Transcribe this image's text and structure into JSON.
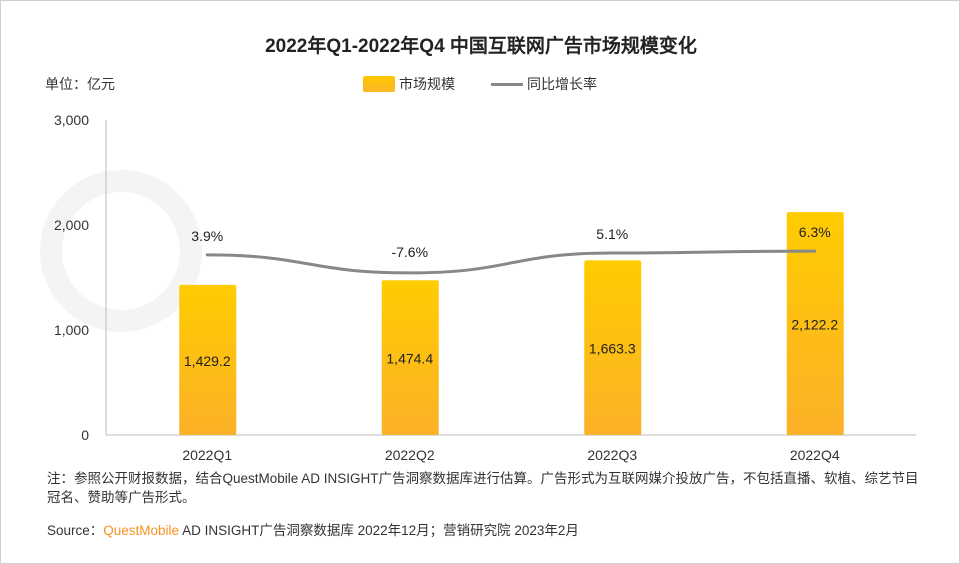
{
  "chart_data": {
    "type": "bar",
    "title": "2022年Q1-2022年Q4 中国互联网广告市场规模变化",
    "unit_label": "单位：亿元",
    "categories": [
      "2022Q1",
      "2022Q2",
      "2022Q3",
      "2022Q4"
    ],
    "series": [
      {
        "name": "市场规模",
        "type": "bar",
        "values": [
          1429.2,
          1474.4,
          1663.3,
          2122.2
        ],
        "labels": [
          "1,429.2",
          "1,474.4",
          "1,663.3",
          "2,122.2"
        ],
        "color": "#ffc800"
      },
      {
        "name": "同比增长率",
        "type": "line",
        "axis": "secondary",
        "values": [
          3.9,
          -7.6,
          5.1,
          6.3
        ],
        "labels": [
          "3.9%",
          "-7.6%",
          "5.1%",
          "6.3%"
        ],
        "color": "#888888"
      }
    ],
    "ylim": [
      0,
      3000
    ],
    "yticks": [
      "0",
      "1,000",
      "2,000",
      "3,000"
    ],
    "legend": "top-center",
    "grid": false
  },
  "note": "注：参照公开财报数据，结合QuestMobile AD INSIGHT广告洞察数据库进行估算。广告形式为互联网媒介投放广告，不包括直播、软植、综艺节目冠名、赞助等广告形式。",
  "source": {
    "prefix": "Source：",
    "brand": "QuestMobile",
    "rest": " AD INSIGHT广告洞察数据库 2022年12月；营销研究院 2023年2月"
  },
  "watermark": "QUESTMOBILE"
}
